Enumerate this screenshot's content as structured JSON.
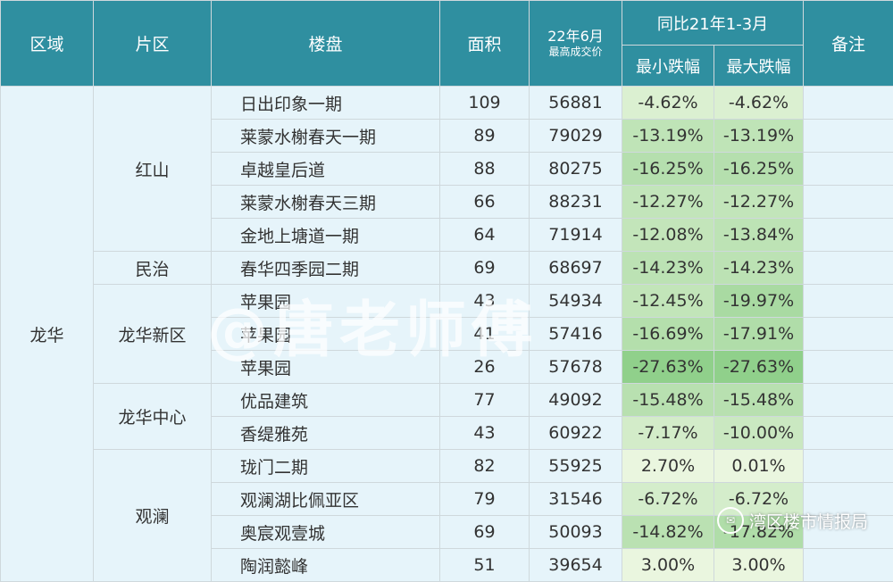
{
  "headers": {
    "region": "区域",
    "district": "片区",
    "project": "楼盘",
    "area": "面积",
    "date_line1": "22年6月",
    "date_line2": "最高成交价",
    "yoy": "同比21年1-3月",
    "min_drop": "最小跌幅",
    "max_drop": "最大跌幅",
    "note": "备注"
  },
  "region": "龙华",
  "groups": [
    {
      "district": "红山",
      "rows": [
        {
          "project": "日出印象一期",
          "area": "109",
          "price": "56881",
          "min": "-4.62%",
          "max": "-4.62%"
        },
        {
          "project": "莱蒙水榭春天一期",
          "area": "89",
          "price": "79029",
          "min": "-13.19%",
          "max": "-13.19%"
        },
        {
          "project": "卓越皇后道",
          "area": "88",
          "price": "80275",
          "min": "-16.25%",
          "max": "-16.25%"
        },
        {
          "project": "莱蒙水榭春天三期",
          "area": "66",
          "price": "88231",
          "min": "-12.27%",
          "max": "-12.27%"
        },
        {
          "project": "金地上塘道一期",
          "area": "64",
          "price": "71914",
          "min": "-12.08%",
          "max": "-13.84%"
        }
      ]
    },
    {
      "district": "民治",
      "rows": [
        {
          "project": "春华四季园二期",
          "area": "69",
          "price": "68697",
          "min": "-14.23%",
          "max": "-14.23%"
        }
      ]
    },
    {
      "district": "龙华新区",
      "rows": [
        {
          "project": "苹果园",
          "area": "43",
          "price": "54934",
          "min": "-12.45%",
          "max": "-19.97%"
        },
        {
          "project": "苹果园",
          "area": "41",
          "price": "57416",
          "min": "-16.69%",
          "max": "-17.91%"
        },
        {
          "project": "苹果园",
          "area": "26",
          "price": "57678",
          "min": "-27.63%",
          "max": "-27.63%"
        }
      ]
    },
    {
      "district": "龙华中心",
      "rows": [
        {
          "project": "优品建筑",
          "area": "77",
          "price": "49092",
          "min": "-15.48%",
          "max": "-15.48%"
        },
        {
          "project": "香缇雅苑",
          "area": "43",
          "price": "60922",
          "min": "-7.17%",
          "max": "-10.00%"
        }
      ]
    },
    {
      "district": "观澜",
      "rows": [
        {
          "project": "珑门二期",
          "area": "82",
          "price": "55925",
          "min": "2.70%",
          "max": "0.01%"
        },
        {
          "project": "观澜湖比佩亚区",
          "area": "79",
          "price": "31546",
          "min": "-6.72%",
          "max": "-6.72%"
        },
        {
          "project": "奥宸观壹城",
          "area": "69",
          "price": "50093",
          "min": "-14.82%",
          "max": "-17.82%"
        },
        {
          "project": "陶润懿峰",
          "area": "51",
          "price": "39654",
          "min": "3.00%",
          "max": "3.00%"
        }
      ]
    }
  ],
  "watermark": "@唐老师傅",
  "brand": "湾区楼市情报局",
  "colors": {
    "header_bg": "#2f8fa0",
    "body_bg": "#e6f4fa",
    "drop_light": "#eaf6df",
    "drop_dark": "#8fcf8a"
  }
}
